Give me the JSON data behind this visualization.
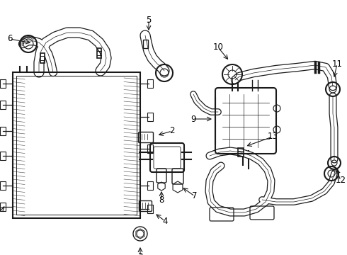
{
  "bg_color": "#ffffff",
  "line_color": "#1a1a1a",
  "label_color": "#000000",
  "label_fontsize": 8.5,
  "fig_width": 4.9,
  "fig_height": 3.6,
  "dpi": 100
}
